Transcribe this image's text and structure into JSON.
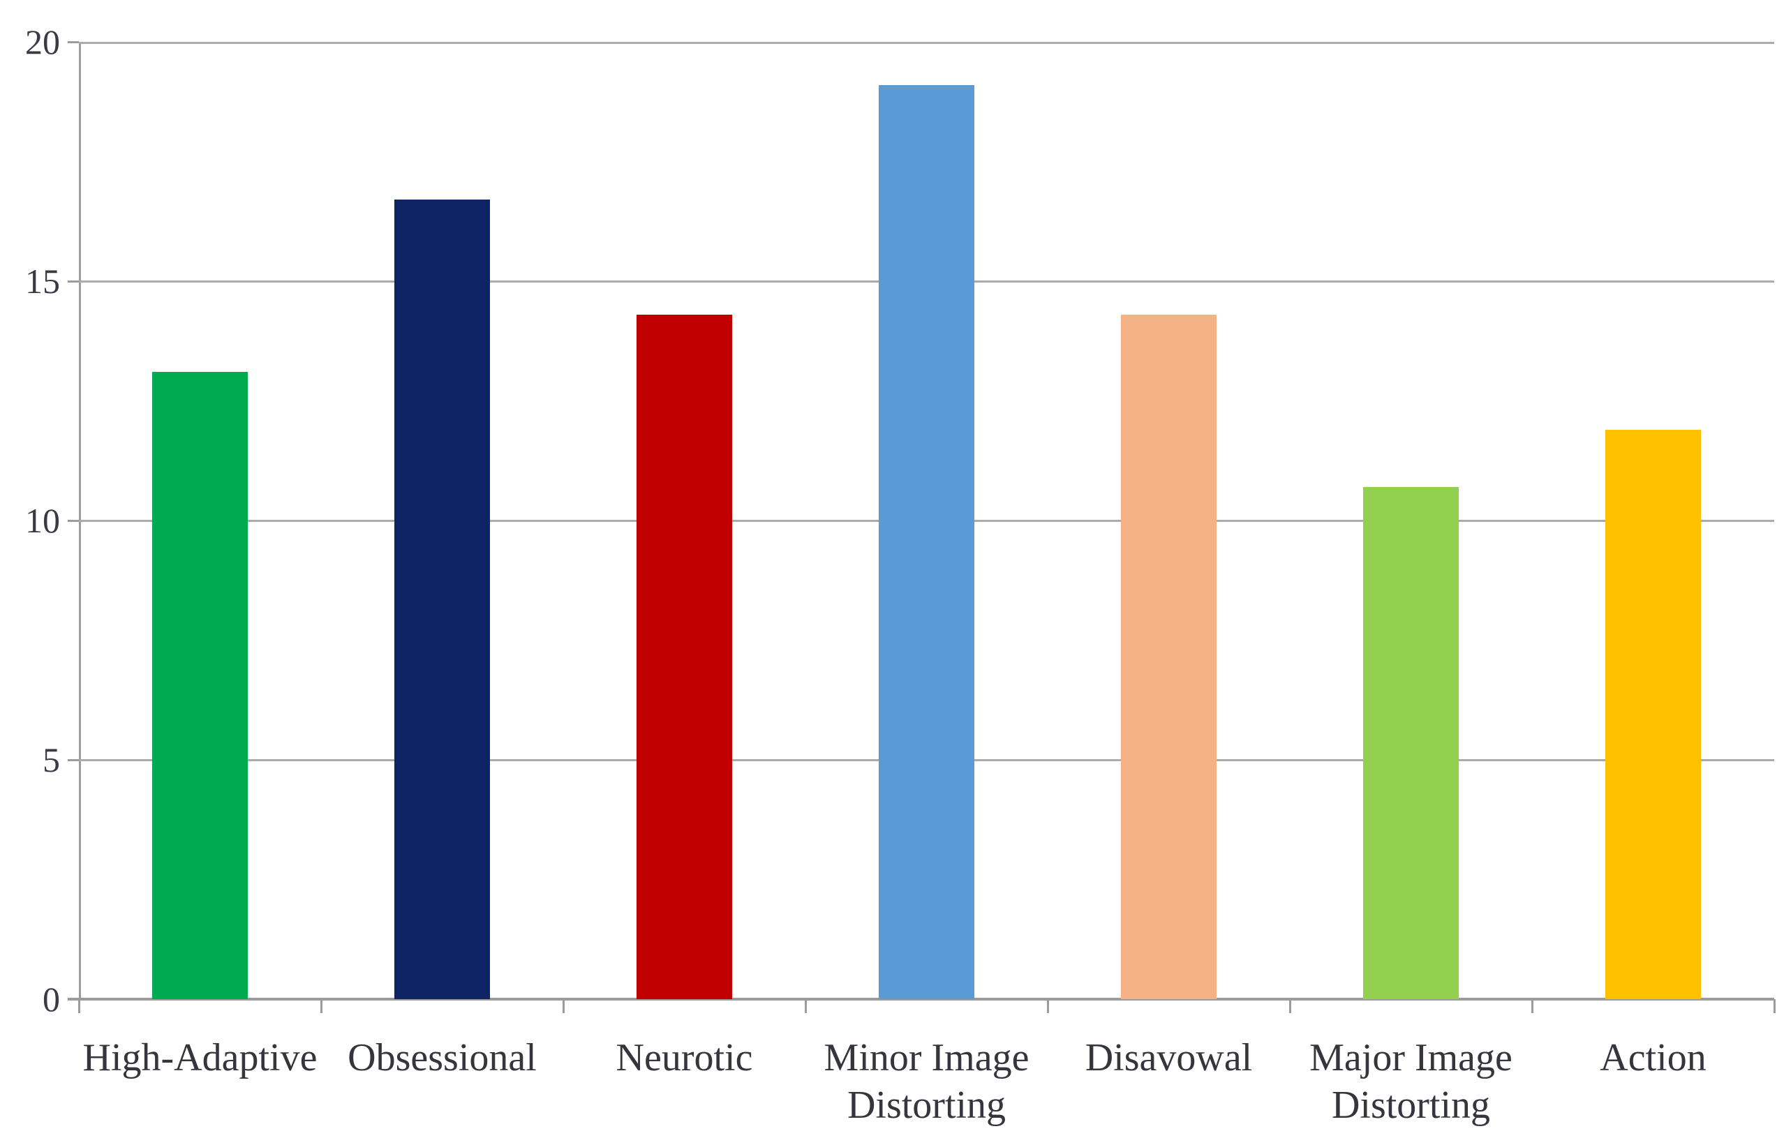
{
  "chart_data": {
    "type": "bar",
    "title": "",
    "xlabel": "",
    "ylabel": "",
    "categories": [
      "High-Adaptive",
      "Obsessional",
      "Neurotic",
      "Minor Image\nDistorting",
      "Disavowal",
      "Major Image\nDistorting",
      "Action"
    ],
    "values": [
      13.1,
      16.7,
      14.3,
      19.1,
      14.3,
      10.7,
      11.9
    ],
    "bar_colors": [
      "#00AB50",
      "#0E2464",
      "#C00000",
      "#5B9BD5",
      "#F4B183",
      "#92D050",
      "#FFC000"
    ],
    "ylim": [
      0,
      20
    ],
    "yticks": [
      0,
      5,
      10,
      15,
      20
    ],
    "grid": true,
    "legend": false,
    "colors": {
      "gridline": "#ABABAB",
      "axis": "#9B9B9B",
      "tick_label": "#3A3A44",
      "category_label": "#35353D",
      "background": "#FFFFFF"
    }
  }
}
